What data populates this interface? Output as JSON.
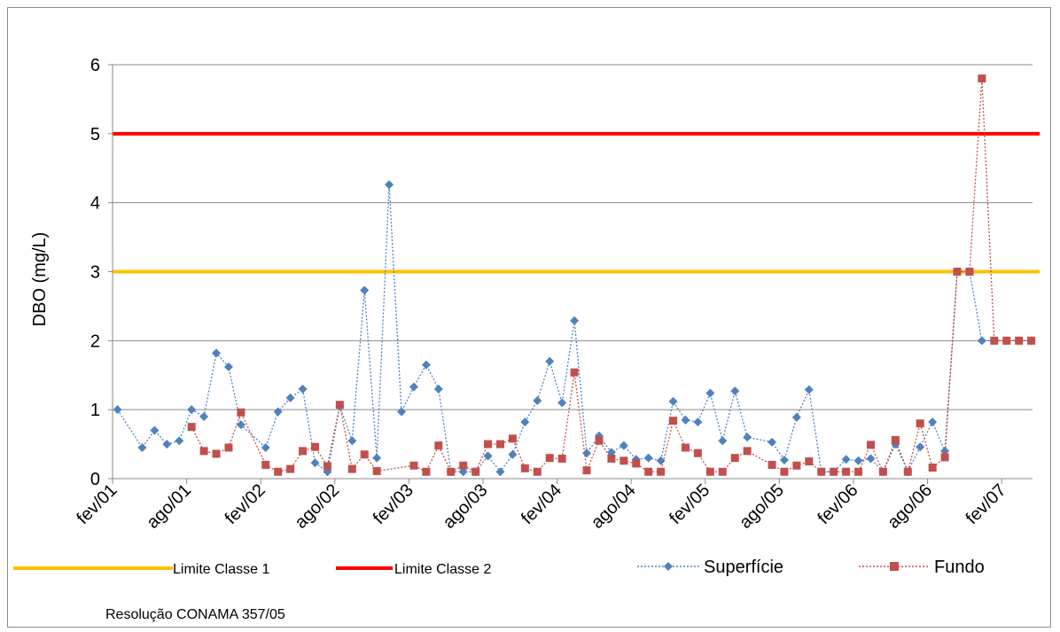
{
  "chart_data": {
    "type": "line",
    "ylabel": "DBO (mg/L)",
    "xlabel": "",
    "ylim": [
      0,
      6
    ],
    "yticks": [
      0,
      1,
      2,
      3,
      4,
      5,
      6
    ],
    "x_index_range": [
      0,
      74
    ],
    "xtick_labels": [
      {
        "index": 0,
        "label": "fev/01"
      },
      {
        "index": 6,
        "label": "ago/01"
      },
      {
        "index": 12,
        "label": "fev/02"
      },
      {
        "index": 18,
        "label": "ago/02"
      },
      {
        "index": 24,
        "label": "fev/03"
      },
      {
        "index": 30,
        "label": "ago/03"
      },
      {
        "index": 36,
        "label": "fev/04"
      },
      {
        "index": 42,
        "label": "ago/04"
      },
      {
        "index": 48,
        "label": "fev/05"
      },
      {
        "index": 54,
        "label": "ago/05"
      },
      {
        "index": 60,
        "label": "fev/06"
      },
      {
        "index": 66,
        "label": "ago/06"
      },
      {
        "index": 72,
        "label": "fev/07"
      }
    ],
    "grid": true,
    "legend_placement": "bottom",
    "reference_lines": [
      {
        "name": "Limite Classe 1",
        "value": 3,
        "color": "#FFC000"
      },
      {
        "name": "Limite Classe 2",
        "value": 5,
        "color": "#FF0000"
      }
    ],
    "series": [
      {
        "name": "Superfície",
        "color": "#4F81BD",
        "marker": "diamond",
        "points": [
          [
            0.4,
            1.0
          ],
          [
            2.4,
            0.45
          ],
          [
            3.4,
            0.7
          ],
          [
            4.4,
            0.5
          ],
          [
            5.4,
            0.55
          ],
          [
            6.4,
            1.0
          ],
          [
            7.4,
            0.9
          ],
          [
            8.4,
            1.82
          ],
          [
            9.4,
            1.62
          ],
          [
            10.4,
            0.78
          ],
          [
            12.4,
            0.45
          ],
          [
            13.4,
            0.97
          ],
          [
            14.4,
            1.17
          ],
          [
            15.4,
            1.3
          ],
          [
            16.4,
            0.23
          ],
          [
            17.4,
            0.1
          ],
          [
            18.4,
            1.05
          ],
          [
            19.4,
            0.55
          ],
          [
            20.4,
            2.73
          ],
          [
            21.4,
            0.3
          ],
          [
            22.4,
            4.26
          ],
          [
            23.4,
            0.97
          ],
          [
            24.4,
            1.33
          ],
          [
            25.4,
            1.65
          ],
          [
            26.4,
            1.3
          ],
          [
            27.4,
            0.1
          ],
          [
            28.4,
            0.1
          ],
          [
            29.4,
            0.1
          ],
          [
            30.4,
            0.33
          ],
          [
            31.4,
            0.1
          ],
          [
            32.4,
            0.35
          ],
          [
            33.4,
            0.82
          ],
          [
            34.4,
            1.13
          ],
          [
            35.4,
            1.7
          ],
          [
            36.4,
            1.1
          ],
          [
            37.4,
            2.29
          ],
          [
            38.4,
            0.37
          ],
          [
            39.4,
            0.62
          ],
          [
            40.4,
            0.38
          ],
          [
            41.4,
            0.48
          ],
          [
            42.4,
            0.28
          ],
          [
            43.4,
            0.3
          ],
          [
            44.4,
            0.26
          ],
          [
            45.4,
            1.12
          ],
          [
            46.4,
            0.85
          ],
          [
            47.4,
            0.82
          ],
          [
            48.4,
            1.24
          ],
          [
            49.4,
            0.55
          ],
          [
            50.4,
            1.27
          ],
          [
            51.4,
            0.6
          ],
          [
            53.4,
            0.53
          ],
          [
            54.4,
            0.27
          ],
          [
            55.4,
            0.89
          ],
          [
            56.4,
            1.29
          ],
          [
            57.4,
            0.1
          ],
          [
            58.4,
            0.1
          ],
          [
            59.4,
            0.28
          ],
          [
            60.4,
            0.26
          ],
          [
            61.4,
            0.29
          ],
          [
            62.4,
            0.1
          ],
          [
            63.4,
            0.5
          ],
          [
            64.4,
            0.1
          ],
          [
            65.4,
            0.46
          ],
          [
            66.4,
            0.82
          ],
          [
            67.4,
            0.4
          ],
          [
            68.4,
            3.0
          ],
          [
            69.4,
            3.0
          ],
          [
            70.4,
            2.0
          ],
          [
            71.4,
            2.0
          ],
          [
            72.4,
            2.0
          ],
          [
            73.4,
            2.0
          ],
          [
            74.4,
            2.0
          ]
        ]
      },
      {
        "name": "Fundo",
        "color": "#C0504D",
        "marker": "square",
        "points": [
          [
            6.4,
            0.75
          ],
          [
            7.4,
            0.4
          ],
          [
            8.4,
            0.36
          ],
          [
            9.4,
            0.45
          ],
          [
            10.4,
            0.96
          ],
          [
            12.4,
            0.2
          ],
          [
            13.4,
            0.1
          ],
          [
            14.4,
            0.14
          ],
          [
            15.4,
            0.4
          ],
          [
            16.4,
            0.46
          ],
          [
            17.4,
            0.18
          ],
          [
            18.4,
            1.07
          ],
          [
            19.4,
            0.14
          ],
          [
            20.4,
            0.35
          ],
          [
            21.4,
            0.11
          ],
          [
            24.4,
            0.19
          ],
          [
            25.4,
            0.1
          ],
          [
            26.4,
            0.48
          ],
          [
            27.4,
            0.1
          ],
          [
            28.4,
            0.19
          ],
          [
            29.4,
            0.1
          ],
          [
            30.4,
            0.5
          ],
          [
            31.4,
            0.5
          ],
          [
            32.4,
            0.58
          ],
          [
            33.4,
            0.15
          ],
          [
            34.4,
            0.1
          ],
          [
            35.4,
            0.3
          ],
          [
            36.4,
            0.29
          ],
          [
            37.4,
            1.54
          ],
          [
            38.4,
            0.12
          ],
          [
            39.4,
            0.55
          ],
          [
            40.4,
            0.29
          ],
          [
            41.4,
            0.26
          ],
          [
            42.4,
            0.22
          ],
          [
            43.4,
            0.1
          ],
          [
            44.4,
            0.1
          ],
          [
            45.4,
            0.84
          ],
          [
            46.4,
            0.45
          ],
          [
            47.4,
            0.37
          ],
          [
            48.4,
            0.1
          ],
          [
            49.4,
            0.1
          ],
          [
            50.4,
            0.3
          ],
          [
            51.4,
            0.4
          ],
          [
            53.4,
            0.2
          ],
          [
            54.4,
            0.1
          ],
          [
            55.4,
            0.19
          ],
          [
            56.4,
            0.25
          ],
          [
            57.4,
            0.1
          ],
          [
            58.4,
            0.1
          ],
          [
            59.4,
            0.1
          ],
          [
            60.4,
            0.1
          ],
          [
            61.4,
            0.49
          ],
          [
            62.4,
            0.1
          ],
          [
            63.4,
            0.56
          ],
          [
            64.4,
            0.1
          ],
          [
            65.4,
            0.8
          ],
          [
            66.4,
            0.16
          ],
          [
            67.4,
            0.31
          ],
          [
            68.4,
            3.0
          ],
          [
            69.4,
            3.0
          ],
          [
            70.4,
            5.8
          ],
          [
            71.4,
            2.0
          ],
          [
            72.4,
            2.0
          ],
          [
            73.4,
            2.0
          ],
          [
            74.4,
            2.0
          ]
        ]
      }
    ],
    "footnote": "Resolução CONAMA 357/05"
  }
}
